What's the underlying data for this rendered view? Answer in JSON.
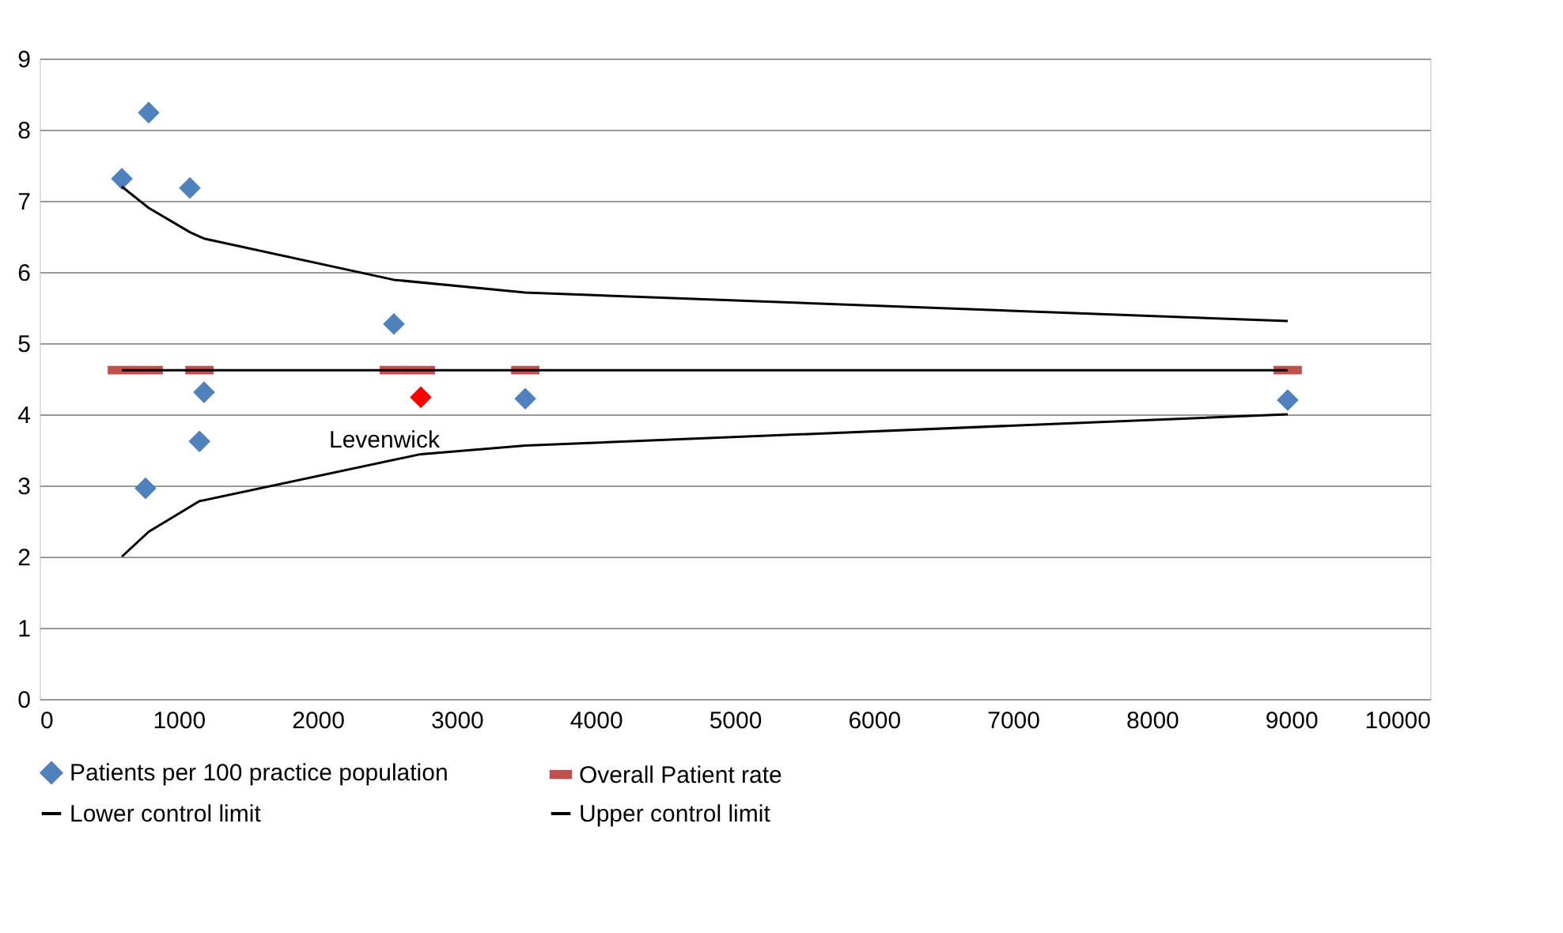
{
  "chart_data": {
    "type": "scatter",
    "xlim": [
      0,
      10000
    ],
    "xticks": [
      0,
      1000,
      2000,
      3000,
      4000,
      5000,
      6000,
      7000,
      8000,
      9000,
      10000
    ],
    "ylim": [
      0,
      9
    ],
    "yticks": [
      0,
      1,
      2,
      3,
      4,
      5,
      6,
      7,
      8,
      9
    ],
    "grid": "y",
    "legend": "bottom",
    "annotations": [
      {
        "text": "Levenwick",
        "x": 2742,
        "y": 4.24
      }
    ],
    "series": [
      {
        "name": "Patients per 100 practice population",
        "marker": "diamond",
        "color": "#4f81bd",
        "x": [
          592,
          785,
          1081,
          762,
          1150,
          1183,
          2548,
          2742,
          3493,
          8976
        ],
        "values": [
          7.31,
          8.24,
          7.18,
          2.96,
          3.62,
          4.31,
          5.27,
          4.24,
          4.22,
          4.2
        ],
        "colors": [
          "#4f81bd",
          "#4f81bd",
          "#4f81bd",
          "#4f81bd",
          "#4f81bd",
          "#4f81bd",
          "#4f81bd",
          "#ff0000",
          "#4f81bd",
          "#4f81bd"
        ]
      },
      {
        "name": "Overall Patient rate",
        "type": "scatter",
        "marker": "square",
        "color": "#c0504d",
        "x": [
          592,
          785,
          1150,
          2548,
          2742,
          3493,
          8976
        ],
        "values": [
          4.62,
          4.62,
          4.62,
          4.62,
          4.62,
          4.62,
          4.62
        ]
      },
      {
        "type": "line",
        "marker": "none",
        "color": "#000000",
        "x": [
          592,
          785,
          1150,
          2548,
          2742,
          3493,
          8976
        ],
        "values": [
          4.62,
          4.62,
          4.62,
          4.62,
          4.62,
          4.62,
          4.62
        ]
      },
      {
        "name": "Lower control limit",
        "type": "line",
        "marker": "none",
        "color": "#000000",
        "x": [
          592,
          785,
          1150,
          2742,
          3493,
          8976
        ],
        "values": [
          2.0,
          2.35,
          2.78,
          3.44,
          3.56,
          4.0
        ]
      },
      {
        "name": "Upper control limit",
        "type": "line",
        "marker": "none",
        "color": "#000000",
        "x": [
          592,
          785,
          1081,
          1183,
          2548,
          3493,
          8976
        ],
        "values": [
          7.2,
          6.9,
          6.56,
          6.47,
          5.89,
          5.71,
          5.31
        ]
      }
    ]
  }
}
